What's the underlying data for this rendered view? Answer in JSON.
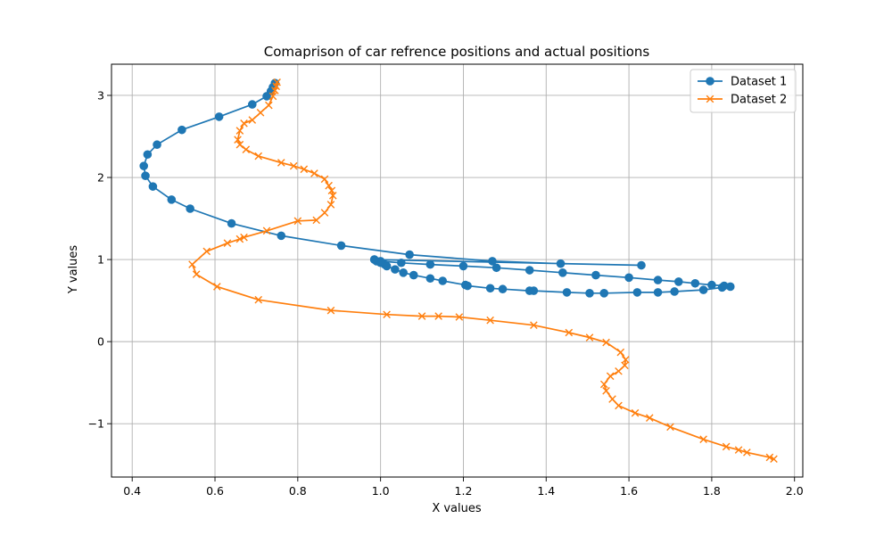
{
  "chart_data": {
    "type": "line",
    "title": "Comaprison of car refrence positions and actual positions",
    "xlabel": "X values",
    "ylabel": "Y values",
    "xlim": [
      0.35,
      2.02
    ],
    "ylim": [
      -1.65,
      3.38
    ],
    "xticks": [
      0.4,
      0.6,
      0.8,
      1.0,
      1.2,
      1.4,
      1.6,
      1.8,
      2.0
    ],
    "xtick_labels": [
      "0.4",
      "0.6",
      "0.8",
      "1.0",
      "1.2",
      "1.4",
      "1.6",
      "1.8",
      "2.0"
    ],
    "yticks": [
      -1,
      0,
      1,
      2,
      3
    ],
    "ytick_labels": [
      "−1",
      "0",
      "1",
      "2",
      "3"
    ],
    "grid": true,
    "legend_position": "top-right",
    "series": [
      {
        "name": "Dataset 1",
        "color": "#1f77b4",
        "marker": "circle",
        "x": [
          0.745,
          0.74,
          0.735,
          0.725,
          0.69,
          0.61,
          0.52,
          0.46,
          0.437,
          0.428,
          0.432,
          0.45,
          0.495,
          0.54,
          0.64,
          0.76,
          0.905,
          1.07,
          1.27,
          1.435,
          1.63,
          0.985,
          0.99,
          1.0,
          1.01,
          1.015,
          1.035,
          1.055,
          1.08,
          1.12,
          1.15,
          1.205,
          1.21,
          1.265,
          1.295,
          1.36,
          1.37,
          1.45,
          1.505,
          1.54,
          1.62,
          1.67,
          1.71,
          1.78,
          1.825,
          1.845,
          1.83,
          1.8,
          1.76,
          1.72,
          1.67,
          1.6,
          1.52,
          1.44,
          1.36,
          1.28,
          1.2,
          1.12,
          1.05,
          1.0,
          0.985
        ],
        "y": [
          3.15,
          3.1,
          3.05,
          2.99,
          2.89,
          2.74,
          2.58,
          2.4,
          2.28,
          2.14,
          2.02,
          1.89,
          1.73,
          1.62,
          1.44,
          1.29,
          1.17,
          1.06,
          0.98,
          0.95,
          0.93,
          1.0,
          0.98,
          0.96,
          0.94,
          0.92,
          0.88,
          0.84,
          0.81,
          0.77,
          0.74,
          0.69,
          0.68,
          0.65,
          0.64,
          0.62,
          0.62,
          0.6,
          0.59,
          0.59,
          0.6,
          0.6,
          0.61,
          0.63,
          0.66,
          0.67,
          0.68,
          0.69,
          0.71,
          0.73,
          0.75,
          0.78,
          0.81,
          0.84,
          0.87,
          0.9,
          0.92,
          0.94,
          0.96,
          0.98,
          1.0
        ]
      },
      {
        "name": "Dataset 2",
        "color": "#ff7f0e",
        "marker": "x",
        "x": [
          0.75,
          0.748,
          0.745,
          0.74,
          0.73,
          0.71,
          0.69,
          0.67,
          0.66,
          0.655,
          0.66,
          0.675,
          0.705,
          0.76,
          0.79,
          0.815,
          0.84,
          0.865,
          0.875,
          0.882,
          0.885,
          0.88,
          0.865,
          0.845,
          0.8,
          0.725,
          0.67,
          0.66,
          0.63,
          0.58,
          0.545,
          0.555,
          0.605,
          0.705,
          0.88,
          1.015,
          1.1,
          1.14,
          1.19,
          1.265,
          1.37,
          1.455,
          1.505,
          1.545,
          1.58,
          1.592,
          1.59,
          1.575,
          1.555,
          1.54,
          1.545,
          1.56,
          1.575,
          1.615,
          1.65,
          1.7,
          1.78,
          1.835,
          1.865,
          1.885,
          1.94,
          1.95
        ],
        "y": [
          3.16,
          3.11,
          3.06,
          2.99,
          2.88,
          2.79,
          2.7,
          2.66,
          2.57,
          2.46,
          2.4,
          2.34,
          2.26,
          2.18,
          2.14,
          2.1,
          2.05,
          1.98,
          1.9,
          1.84,
          1.78,
          1.67,
          1.57,
          1.48,
          1.47,
          1.35,
          1.27,
          1.25,
          1.2,
          1.1,
          0.94,
          0.82,
          0.67,
          0.51,
          0.38,
          0.33,
          0.31,
          0.31,
          0.3,
          0.26,
          0.2,
          0.11,
          0.05,
          -0.01,
          -0.13,
          -0.22,
          -0.29,
          -0.36,
          -0.42,
          -0.52,
          -0.6,
          -0.7,
          -0.78,
          -0.87,
          -0.93,
          -1.04,
          -1.19,
          -1.28,
          -1.32,
          -1.35,
          -1.41,
          -1.43
        ]
      }
    ]
  }
}
